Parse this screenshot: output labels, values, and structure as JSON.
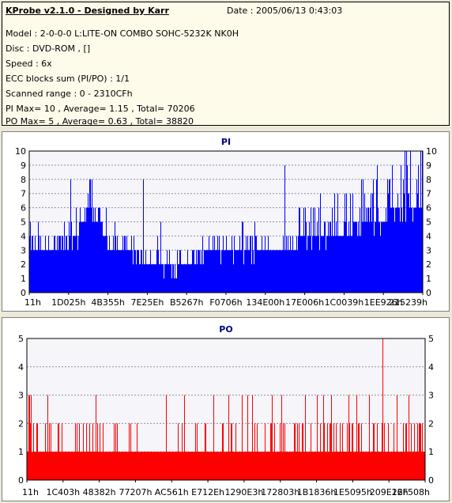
{
  "header": {
    "title": "KProbe v2.1.0 - Designed by Karr",
    "date": "Date : 2005/06/13 0:43:03",
    "lines": [
      "Model : 2-0-0-0 L:LITE-ON COMBO SOHC-5232K NK0H",
      "Disc : DVD-ROM ,  []",
      "Speed : 6x",
      "ECC blocks sum (PI/PO) : 1/1",
      "Scanned range : 0 - 2310CFh",
      "PI Max= 10 , Average= 1.15 , Total= 70206",
      "PO Max= 5 , Average= 0.63 , Total= 38820"
    ]
  },
  "chart_data": [
    {
      "type": "bar",
      "title": "PI",
      "color": "#0000ff",
      "ylim": [
        0,
        10
      ],
      "yticks": [
        0,
        1,
        2,
        3,
        4,
        5,
        6,
        7,
        8,
        9,
        10
      ],
      "xticks": [
        "11h",
        "1D025h",
        "4B355h",
        "7E25Eh",
        "B5267h",
        "F0706h",
        "134E00h",
        "17E006h",
        "1C0039h",
        "1EE926h",
        "215239h"
      ],
      "max": 10,
      "average": 1.15,
      "profile": [
        [
          0.0,
          3,
          5,
          4,
          0.25
        ],
        [
          0.02,
          3,
          7,
          3,
          0.15
        ],
        [
          0.04,
          3,
          4,
          3,
          0.1
        ],
        [
          0.07,
          2,
          3,
          3,
          0.12
        ],
        [
          0.12,
          3,
          6,
          4,
          0.18
        ],
        [
          0.15,
          4,
          8,
          6,
          0.35
        ],
        [
          0.18,
          3,
          7,
          5,
          0.25
        ],
        [
          0.21,
          2,
          4,
          3,
          0.1
        ],
        [
          0.26,
          2,
          3,
          3,
          0.06
        ],
        [
          0.3,
          2,
          3,
          2,
          0.05
        ],
        [
          0.36,
          1,
          3,
          2,
          0.04
        ],
        [
          0.4,
          2,
          3,
          2,
          0.04
        ],
        [
          0.45,
          2,
          3,
          3,
          0.06
        ],
        [
          0.5,
          2,
          3,
          3,
          0.07
        ],
        [
          0.55,
          2,
          4,
          3,
          0.08
        ],
        [
          0.6,
          3,
          4,
          3,
          0.1
        ],
        [
          0.65,
          3,
          5,
          3,
          0.12
        ],
        [
          0.7,
          3,
          6,
          4,
          0.18
        ],
        [
          0.75,
          3,
          6,
          4,
          0.2
        ],
        [
          0.8,
          3,
          6,
          4,
          0.22
        ],
        [
          0.85,
          3,
          7,
          5,
          0.28
        ],
        [
          0.9,
          3,
          8,
          5,
          0.3
        ],
        [
          0.95,
          4,
          9,
          6,
          0.35
        ],
        [
          1.0,
          4,
          10,
          6,
          0.4
        ]
      ],
      "spikes": [
        [
          0.105,
          8
        ],
        [
          0.155,
          8
        ],
        [
          0.29,
          8
        ],
        [
          0.335,
          5
        ],
        [
          0.65,
          9
        ],
        [
          0.785,
          7
        ],
        [
          0.85,
          8
        ],
        [
          0.875,
          8
        ],
        [
          0.885,
          9
        ],
        [
          0.945,
          9
        ],
        [
          0.955,
          10
        ],
        [
          0.985,
          8
        ],
        [
          0.99,
          9
        ]
      ]
    },
    {
      "type": "bar",
      "title": "PO",
      "color": "#ff0000",
      "ylim": [
        0,
        5
      ],
      "yticks": [
        0,
        1,
        2,
        3,
        4,
        5
      ],
      "xticks": [
        "11h",
        "1C403h",
        "48382h",
        "77207h",
        "AC561h",
        "E712Eh",
        "1290E3h",
        "172803h",
        "1B1836h",
        "1E5095h",
        "209E16h",
        "22F508h"
      ],
      "max": 5,
      "average": 0.63,
      "profile": [
        [
          0.0,
          1,
          2,
          1,
          0.4
        ],
        [
          0.02,
          1,
          2,
          1,
          0.3
        ],
        [
          0.04,
          1,
          2,
          1,
          0.2
        ],
        [
          0.1,
          1,
          2,
          1,
          0.06
        ],
        [
          0.2,
          1,
          2,
          1,
          0.03
        ],
        [
          0.3,
          1,
          2,
          1,
          0.03
        ],
        [
          0.4,
          1,
          2,
          1,
          0.03
        ],
        [
          0.5,
          1,
          2,
          1,
          0.04
        ],
        [
          0.6,
          1,
          2,
          1,
          0.05
        ],
        [
          0.7,
          1,
          2,
          1,
          0.06
        ],
        [
          0.8,
          1,
          2,
          1,
          0.06
        ],
        [
          0.9,
          1,
          2,
          1,
          0.05
        ],
        [
          1.0,
          1,
          2,
          1,
          0.04
        ]
      ],
      "spikes": [
        [
          0.005,
          3
        ],
        [
          0.01,
          3
        ],
        [
          0.35,
          3
        ],
        [
          0.395,
          3
        ],
        [
          0.47,
          3
        ],
        [
          0.54,
          3
        ],
        [
          0.555,
          3
        ],
        [
          0.64,
          3
        ],
        [
          0.7,
          3
        ],
        [
          0.745,
          3
        ],
        [
          0.765,
          3
        ],
        [
          0.81,
          3
        ],
        [
          0.83,
          3
        ],
        [
          0.86,
          3
        ],
        [
          0.895,
          5
        ],
        [
          0.93,
          3
        ],
        [
          0.96,
          3
        ]
      ]
    }
  ]
}
